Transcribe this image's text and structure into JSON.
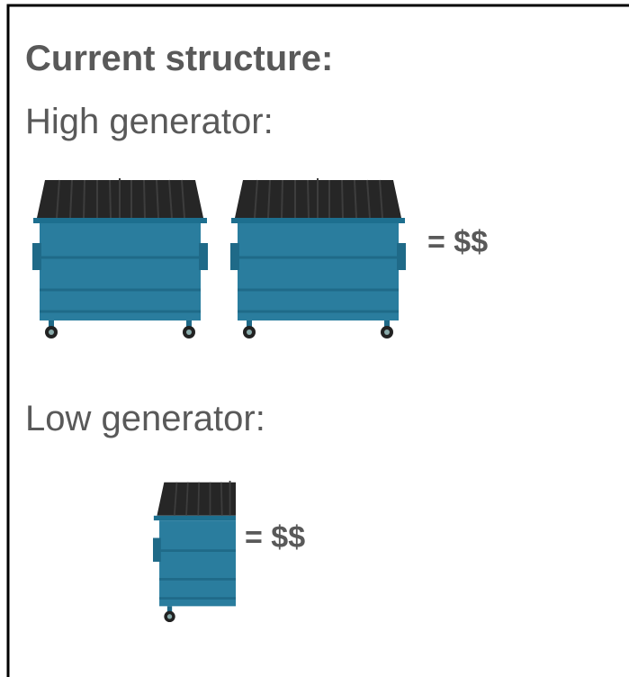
{
  "title": "Current structure:",
  "groups": [
    {
      "label": "High generator:",
      "cost": "= $$"
    },
    {
      "label": "Low generator:",
      "cost": "= $$"
    }
  ]
}
